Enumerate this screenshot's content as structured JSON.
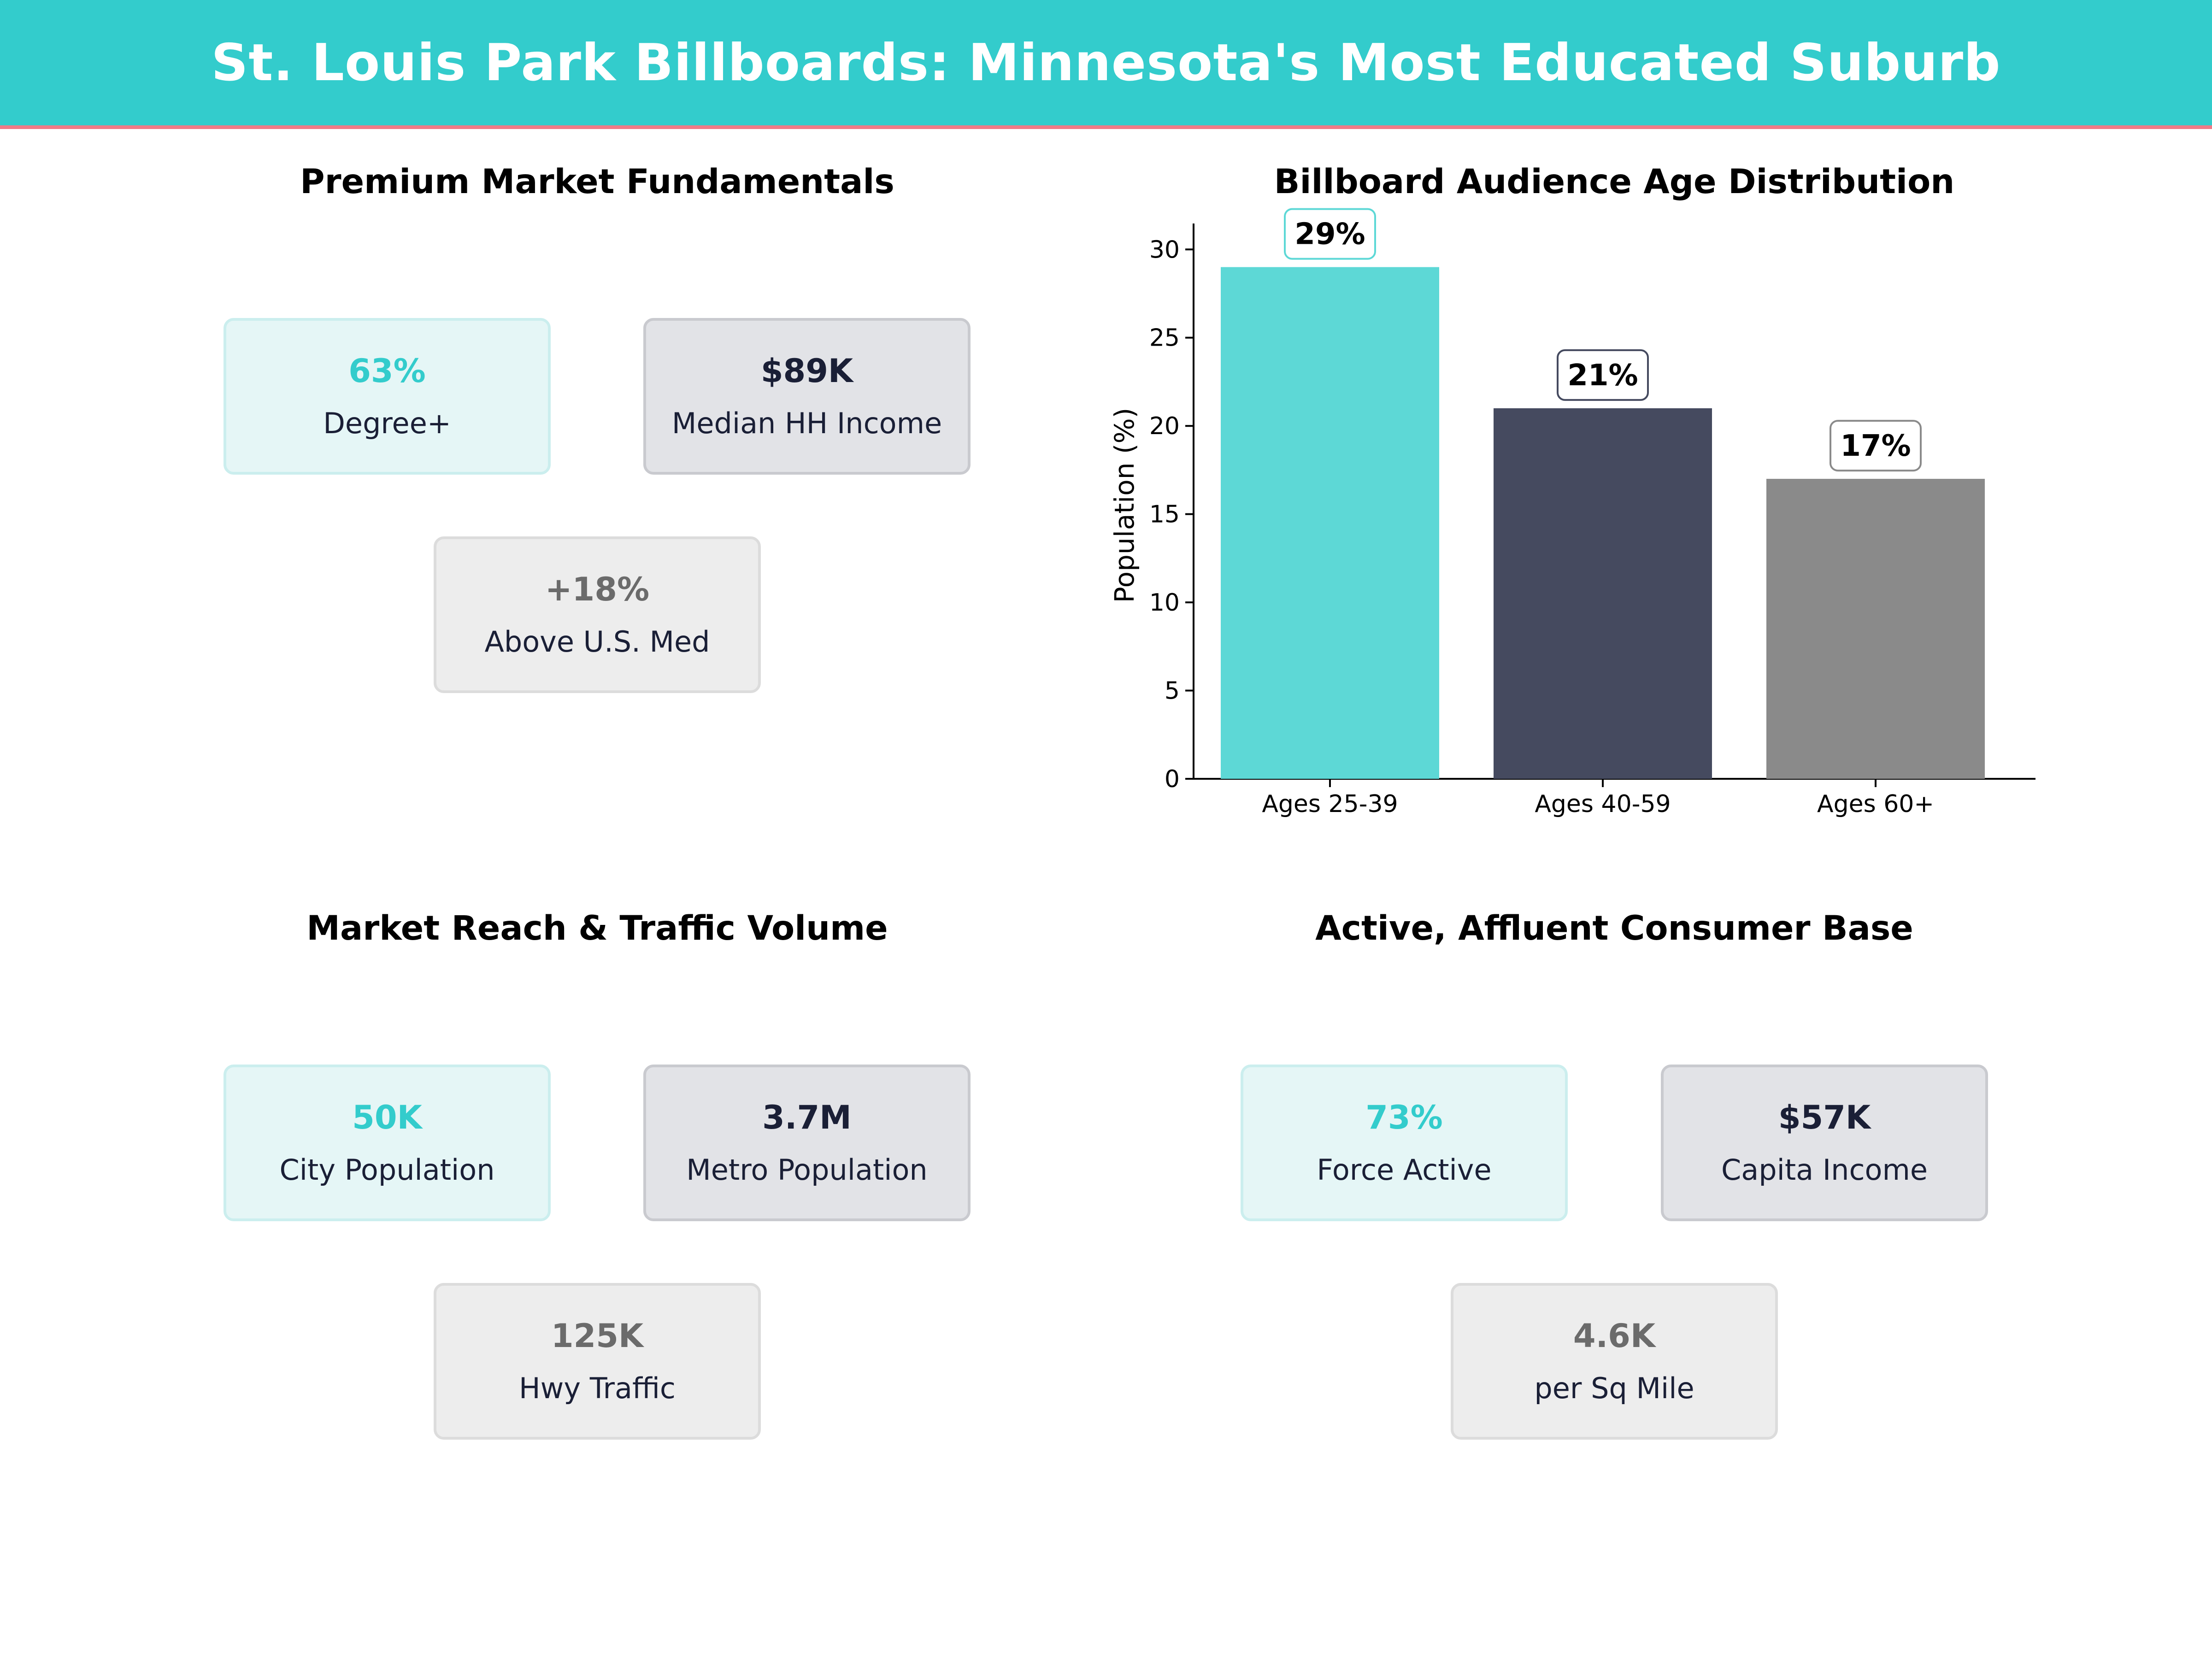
{
  "header": {
    "title": "St. Louis Park Billboards: Minnesota's Most Educated Suburb"
  },
  "colors": {
    "teal": "#33cccc",
    "navy": "#1a1f36",
    "gray": "#6b6b6b",
    "accent_line": "#f07a87"
  },
  "panels": {
    "fundamentals": {
      "title": "Premium Market Fundamentals",
      "cards": [
        {
          "value": "63%",
          "label": "Degree+"
        },
        {
          "value": "$89K",
          "label": "Median HH Income"
        },
        {
          "value": "+18%",
          "label": "Above U.S. Med"
        }
      ]
    },
    "age": {
      "title": "Billboard Audience Age Distribution"
    },
    "reach": {
      "title": "Market Reach & Traffic Volume",
      "cards": [
        {
          "value": "50K",
          "label": "City Population"
        },
        {
          "value": "3.7M",
          "label": "Metro Population"
        },
        {
          "value": "125K",
          "label": "Hwy Traffic"
        }
      ]
    },
    "consumer": {
      "title": "Active, Affluent Consumer Base",
      "cards": [
        {
          "value": "73%",
          "label": "Force Active"
        },
        {
          "value": "$57K",
          "label": "Capita Income"
        },
        {
          "value": "4.6K",
          "label": "per Sq Mile"
        }
      ]
    }
  },
  "chart_data": {
    "type": "bar",
    "title": "Billboard Audience Age Distribution",
    "categories": [
      "Ages 25-39",
      "Ages 40-59",
      "Ages 60+"
    ],
    "values": [
      29,
      21,
      17
    ],
    "data_labels": [
      "29%",
      "21%",
      "17%"
    ],
    "bar_colors": [
      "#5dd8d6",
      "#454a5f",
      "#8a8a8a"
    ],
    "xlabel": "",
    "ylabel": "Population (%)",
    "ylim": [
      0,
      31
    ],
    "yticks": [
      0,
      5,
      10,
      15,
      20,
      25,
      30
    ],
    "grid": false
  }
}
